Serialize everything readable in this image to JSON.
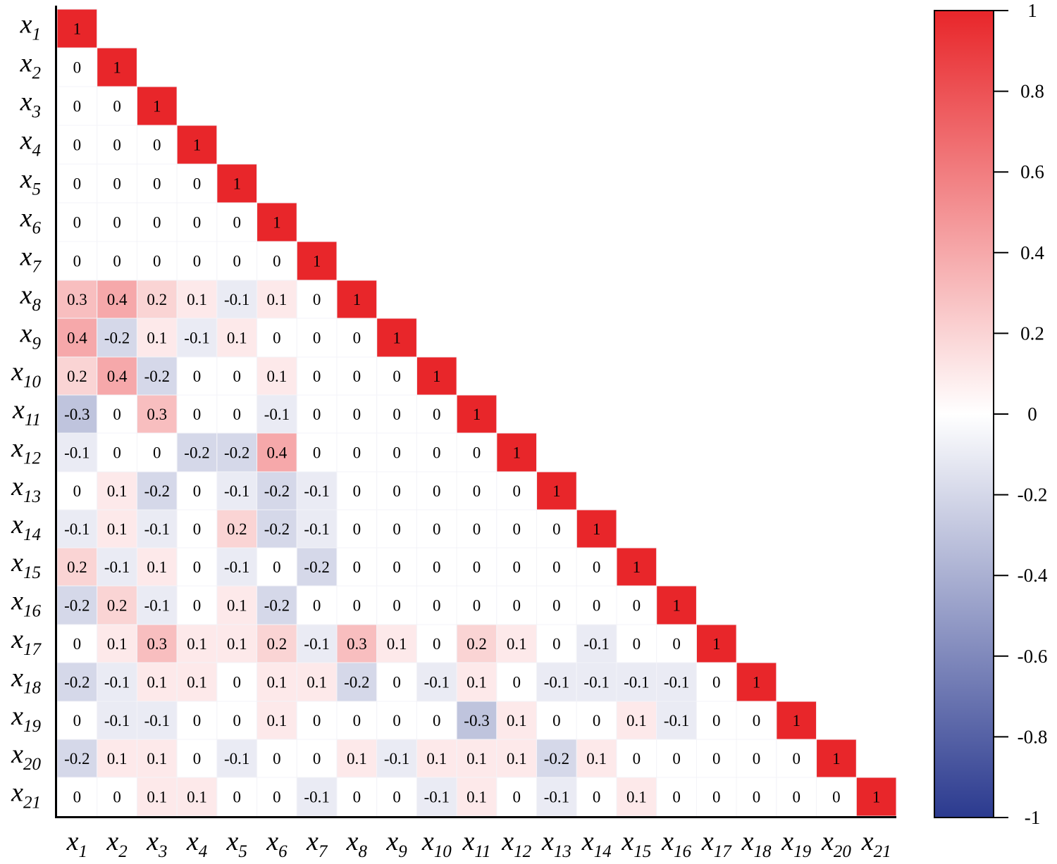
{
  "chart_data": {
    "type": "heatmap",
    "layout": "lower-triangular",
    "variables": [
      {
        "base": "x",
        "sub": "1"
      },
      {
        "base": "x",
        "sub": "2"
      },
      {
        "base": "x",
        "sub": "3"
      },
      {
        "base": "x",
        "sub": "4"
      },
      {
        "base": "x",
        "sub": "5"
      },
      {
        "base": "x",
        "sub": "6"
      },
      {
        "base": "x",
        "sub": "7"
      },
      {
        "base": "x",
        "sub": "8"
      },
      {
        "base": "x",
        "sub": "9"
      },
      {
        "base": "x",
        "sub": "10"
      },
      {
        "base": "x",
        "sub": "11"
      },
      {
        "base": "x",
        "sub": "12"
      },
      {
        "base": "x",
        "sub": "13"
      },
      {
        "base": "x",
        "sub": "14"
      },
      {
        "base": "x",
        "sub": "15"
      },
      {
        "base": "x",
        "sub": "16"
      },
      {
        "base": "x",
        "sub": "17"
      },
      {
        "base": "x",
        "sub": "18"
      },
      {
        "base": "x",
        "sub": "19"
      },
      {
        "base": "x",
        "sub": "20"
      },
      {
        "base": "x",
        "sub": "21"
      }
    ],
    "values": [
      [
        1
      ],
      [
        0,
        1
      ],
      [
        0,
        0,
        1
      ],
      [
        0,
        0,
        0,
        1
      ],
      [
        0,
        0,
        0,
        0,
        1
      ],
      [
        0,
        0,
        0,
        0,
        0,
        1
      ],
      [
        0,
        0,
        0,
        0,
        0,
        0,
        1
      ],
      [
        0.3,
        0.4,
        0.2,
        0.1,
        -0.1,
        0.1,
        0,
        1
      ],
      [
        0.4,
        -0.2,
        0.1,
        -0.1,
        0.1,
        0,
        0,
        0,
        1
      ],
      [
        0.2,
        0.4,
        -0.2,
        0,
        0,
        0.1,
        0,
        0,
        0,
        1
      ],
      [
        -0.3,
        0,
        0.3,
        0,
        0,
        -0.1,
        0,
        0,
        0,
        0,
        1
      ],
      [
        -0.1,
        0,
        0,
        -0.2,
        -0.2,
        0.4,
        0,
        0,
        0,
        0,
        0,
        1
      ],
      [
        0,
        0.1,
        -0.2,
        0,
        -0.1,
        -0.2,
        -0.1,
        0,
        0,
        0,
        0,
        0,
        1
      ],
      [
        -0.1,
        0.1,
        -0.1,
        0,
        0.2,
        -0.2,
        -0.1,
        0,
        0,
        0,
        0,
        0,
        0,
        1
      ],
      [
        0.2,
        -0.1,
        0.1,
        0,
        -0.1,
        0,
        -0.2,
        0,
        0,
        0,
        0,
        0,
        0,
        0,
        1
      ],
      [
        -0.2,
        0.2,
        -0.1,
        0,
        0.1,
        -0.2,
        0,
        0,
        0,
        0,
        0,
        0,
        0,
        0,
        0,
        1
      ],
      [
        0,
        0.1,
        0.3,
        0.1,
        0.1,
        0.2,
        -0.1,
        0.3,
        0.1,
        0,
        0.2,
        0.1,
        0,
        -0.1,
        0,
        0,
        1
      ],
      [
        -0.2,
        -0.1,
        0.1,
        0.1,
        0,
        0.1,
        0.1,
        -0.2,
        0,
        -0.1,
        0.1,
        0,
        -0.1,
        -0.1,
        -0.1,
        -0.1,
        0,
        1
      ],
      [
        0,
        -0.1,
        -0.1,
        0,
        0,
        0.1,
        0,
        0,
        0,
        0,
        -0.3,
        0.1,
        0,
        0,
        0.1,
        -0.1,
        0,
        0,
        1
      ],
      [
        -0.2,
        0.1,
        0.1,
        0,
        -0.1,
        0,
        0,
        0.1,
        -0.1,
        0.1,
        0.1,
        0.1,
        -0.2,
        0.1,
        0,
        0,
        0,
        0,
        0,
        1
      ],
      [
        0,
        0,
        0.1,
        0.1,
        0,
        0,
        -0.1,
        0,
        0,
        -0.1,
        0.1,
        0,
        -0.1,
        0,
        0.1,
        0,
        0,
        0,
        0,
        0,
        1
      ]
    ],
    "colorbar": {
      "range": [
        -1,
        1
      ],
      "ticks": [
        1,
        0.8,
        0.6,
        0.4,
        0.2,
        0,
        -0.2,
        -0.4,
        -0.6,
        -0.8,
        -1
      ],
      "colors": {
        "low": "#2b3a8f",
        "mid": "#ffffff",
        "high": "#e8262a"
      }
    },
    "grid": true,
    "legend": "right"
  }
}
